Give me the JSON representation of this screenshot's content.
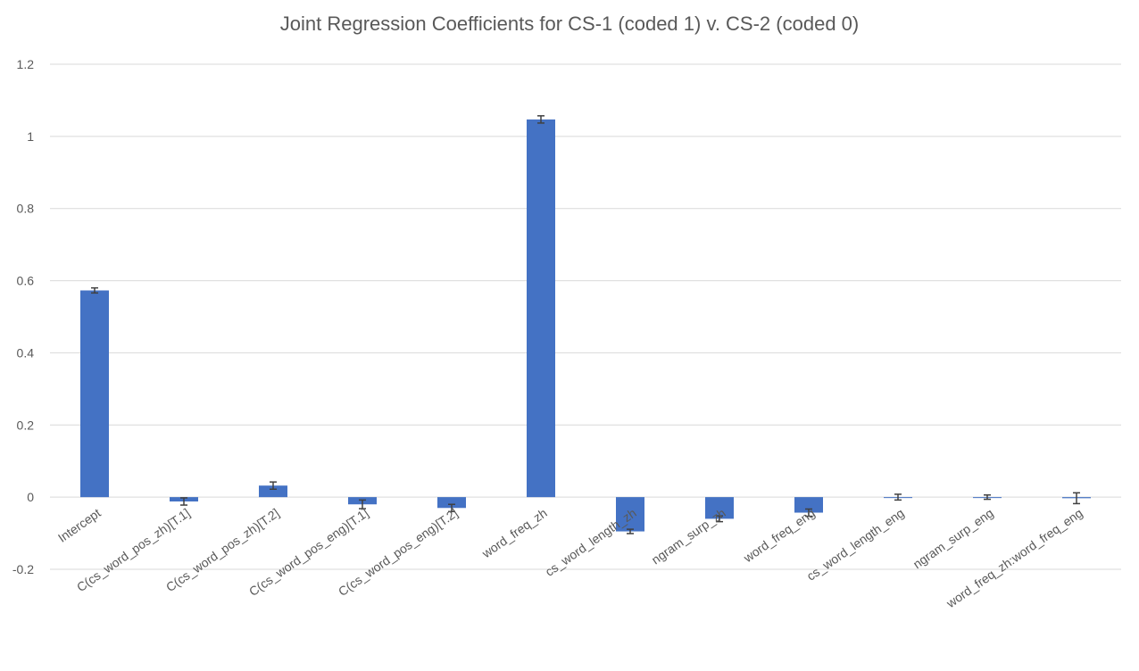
{
  "chart_data": {
    "type": "bar",
    "title": "Joint Regression Coefficients for CS-1 (coded 1) v. CS-2 (coded 0)",
    "xlabel": "",
    "ylabel": "",
    "ylim": [
      -0.2,
      1.2
    ],
    "yticks": [
      -0.2,
      0,
      0.2,
      0.4,
      0.6,
      0.8,
      1,
      1.2
    ],
    "ytick_labels": [
      "-0.2",
      "0",
      "0.2",
      "0.4",
      "0.6",
      "0.8",
      "1",
      "1.2"
    ],
    "grid": true,
    "legend": "none",
    "bar_color": "#4472c4",
    "categories": [
      "Intercept",
      "C(cs_word_pos_zh)[T.1]",
      "C(cs_word_pos_zh)[T.2]",
      "C(cs_word_pos_eng)[T.1]",
      "C(cs_word_pos_eng)[T.2]",
      "word_freq_zh",
      "cs_word_length_zh",
      "ngram_surp_zh",
      "word_freq_eng",
      "cs_word_length_eng",
      "ngram_surp_eng",
      "word_freq_zh:word_freq_eng"
    ],
    "values": [
      0.573,
      -0.012,
      0.032,
      -0.02,
      -0.03,
      1.047,
      -0.095,
      -0.06,
      -0.043,
      0.0,
      0.0,
      -0.003
    ],
    "errors": [
      0.007,
      0.01,
      0.01,
      0.012,
      0.01,
      0.01,
      0.006,
      0.008,
      0.01,
      0.008,
      0.006,
      0.015
    ]
  }
}
